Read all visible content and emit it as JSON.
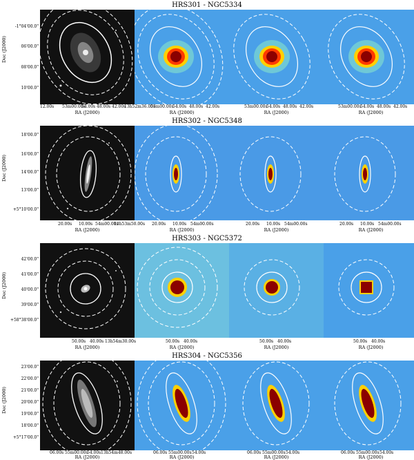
{
  "figure": {
    "rows": [
      {
        "title": "HRS301 - NGC5334",
        "ylabel": "Dec (J2000)",
        "yticks": [
          "-1°04'00.0\"",
          "06'00.0\"",
          "08'00.0\"",
          "10'00.0\""
        ],
        "xticks_first": "12.0s 53m00.0s 48.0s 13h52m36.0s",
        "xticks": [
          "12.00s",
          "53m00.00s",
          "54.00s",
          "48.00s",
          "42.00s",
          "13h52m36.00s"
        ],
        "xticks_other": [
          "53m00.00s",
          "54.00s",
          "48.00s",
          "42.00s"
        ],
        "xlabel": "RA (J2000)"
      },
      {
        "title": "HRS302 - NGC5348",
        "ylabel": "Dec (J2000)",
        "yticks": [
          "18'00.0\"",
          "16'00.0\"",
          "14'00.0\"",
          "13'00.0\"",
          "+5°10'00.0\""
        ],
        "xticks": [
          "20.00s",
          "10.00s",
          "54m00.00s",
          "13h53m50.00s"
        ],
        "xticks_other": [
          "20.00s",
          "10.00s",
          "54m00.00s"
        ],
        "xlabel": "RA (J2000)"
      },
      {
        "title": "HRS303 - NGC5372",
        "ylabel": "Dec (J2000)",
        "yticks": [
          "42'00.0\"",
          "41'00.0\"",
          "40'00.0\"",
          "39'00.0\"",
          "+58°38'00.0\""
        ],
        "xticks": [
          "50.00s",
          "40.00s",
          "13h54m30.00s"
        ],
        "xticks_other": [
          "50.00s",
          "40.00s"
        ],
        "xlabel": "RA (J2000)"
      },
      {
        "title": "HRS304 - NGC5356",
        "ylabel": "Dec (J2000)",
        "yticks": [
          "23'00.0\"",
          "22'00.0\"",
          "21'00.0\"",
          "20'00.0\"",
          "19'00.0\"",
          "18'00.0\"",
          "+5°17'00.0\""
        ],
        "xticks": [
          "06.00s",
          "55m00.00s",
          "54.00s",
          "13h54m48.00s"
        ],
        "xticks_other": [
          "06.00s",
          "55m00.00s",
          "54.00s"
        ],
        "xlabel": "RA (J2000)"
      }
    ],
    "colors": {
      "optical_bg": "#111111",
      "map_bg": "#3a8fe0",
      "hot": "#8b0000",
      "warm": "#ff3a00",
      "mid": "#ffd000",
      "aperture": "#ffffff"
    }
  }
}
